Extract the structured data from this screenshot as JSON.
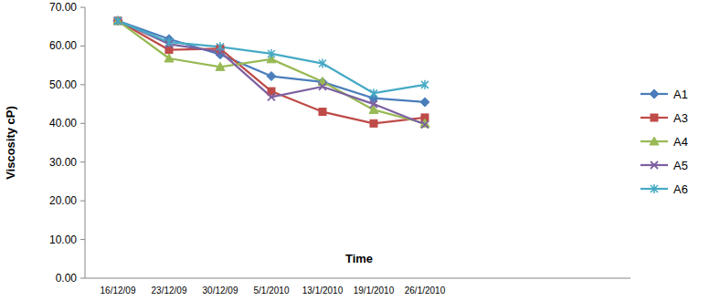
{
  "chart_data": {
    "type": "line",
    "x_label": "Time",
    "y_label": "Viscosity cP)",
    "categories": [
      "16/12/09",
      "23/12/09",
      "30/12/09",
      "5/1/2010",
      "13/1/2010",
      "19/1/2010",
      "26/1/2010"
    ],
    "series": [
      {
        "name": "A1",
        "color": "#4a7ebb",
        "marker": "diamond",
        "values": [
          66.5,
          61.8,
          57.8,
          52.2,
          50.7,
          46.5,
          45.5
        ]
      },
      {
        "name": "A3",
        "color": "#be4b48",
        "marker": "square",
        "values": [
          66.5,
          59.0,
          59.3,
          48.3,
          43.0,
          40.0,
          41.5
        ]
      },
      {
        "name": "A4",
        "color": "#98b954",
        "marker": "triangle",
        "values": [
          66.5,
          56.8,
          54.6,
          56.6,
          50.8,
          43.5,
          40.0
        ]
      },
      {
        "name": "A5",
        "color": "#7d60a0",
        "marker": "x",
        "values": [
          66.5,
          60.5,
          58.5,
          46.8,
          49.5,
          45.0,
          39.7
        ]
      },
      {
        "name": "A6",
        "color": "#46aac5",
        "marker": "star",
        "values": [
          66.5,
          61.0,
          59.8,
          58.0,
          55.5,
          47.8,
          50.0
        ]
      }
    ],
    "ylim": [
      0,
      70
    ],
    "yticks": [
      {
        "value": 0,
        "label": "0.00"
      },
      {
        "value": 10,
        "label": "10.00"
      },
      {
        "value": 20,
        "label": "20.00"
      },
      {
        "value": 30,
        "label": "30.00"
      },
      {
        "value": 40,
        "label": "40.00"
      },
      {
        "value": 50,
        "label": "50.00"
      },
      {
        "value": 60,
        "label": "60.00"
      },
      {
        "value": 70,
        "label": "70.00"
      }
    ],
    "legend": "right",
    "grid": false
  }
}
